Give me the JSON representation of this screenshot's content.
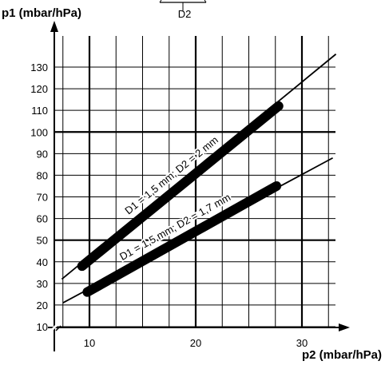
{
  "top_fragment": {
    "label": "D2"
  },
  "chart_data": {
    "type": "line",
    "title": "",
    "xlabel": "p2 (mbar/hPa)",
    "ylabel": "p1 (mbar/hPa)",
    "xlim": [
      7.5,
      33
    ],
    "ylim": [
      8,
      130
    ],
    "x_ticks": [
      10,
      20,
      30
    ],
    "y_ticks": [
      10,
      20,
      30,
      40,
      50,
      60,
      70,
      80,
      90,
      100,
      110,
      120,
      130
    ],
    "x_minor_step": 2.5,
    "y_minor_step": 10,
    "grid": true,
    "series": [
      {
        "name": "D1 = 1,5 mm; D2 = 2 mm",
        "line_x": [
          7.4,
          33.2
        ],
        "line_y": [
          32,
          136
        ],
        "range_x": [
          9.3,
          27.8
        ],
        "range_y": [
          38,
          112
        ]
      },
      {
        "name": "D1 = 1,5 mm; D2 = 1,7 mm",
        "line_x": [
          7.5,
          32.9
        ],
        "line_y": [
          21,
          88
        ],
        "range_x": [
          9.8,
          27.6
        ],
        "range_y": [
          26,
          75
        ]
      }
    ]
  }
}
